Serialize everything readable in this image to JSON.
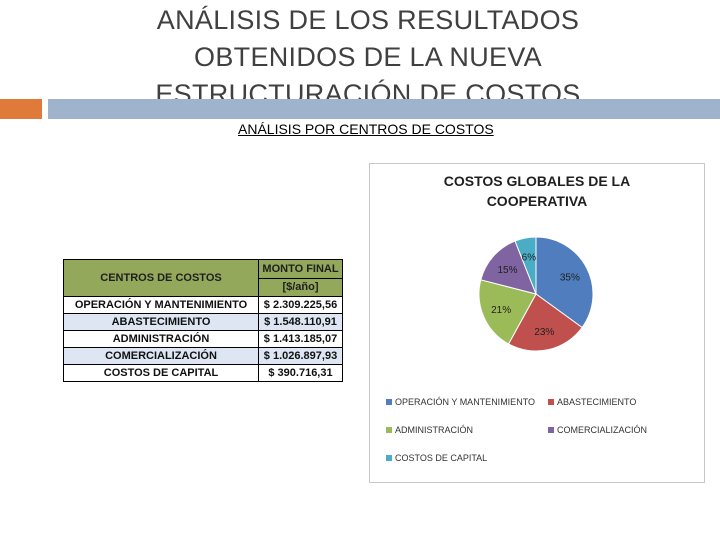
{
  "slide": {
    "title_lines": [
      "ANÁLISIS DE LOS RESULTADOS",
      "OBTENIDOS DE LA NUEVA",
      "ESTRUCTURACIÓN DE COSTOS"
    ],
    "subtitle": "ANÁLISIS POR CENTROS DE COSTOS"
  },
  "colors": {
    "accent_orange": "#e07a3a",
    "accent_blue": "#9fb4cc",
    "table_header": "#93a85a",
    "table_alt_row": "#dde6f2"
  },
  "table": {
    "headers": [
      "CENTROS DE COSTOS",
      "MONTO FINAL",
      "[$/año]"
    ],
    "rows": [
      [
        "OPERACIÓN Y MANTENIMIENTO",
        "$ 2.309.225,56"
      ],
      [
        "ABASTECIMIENTO",
        "$ 1.548.110,91"
      ],
      [
        "ADMINISTRACIÓN",
        "$ 1.413.185,07"
      ],
      [
        "COMERCIALIZACIÓN",
        "$ 1.026.897,93"
      ],
      [
        "COSTOS DE CAPITAL",
        "$ 390.716,31"
      ]
    ]
  },
  "chart_data": {
    "type": "pie",
    "title_lines": [
      "COSTOS GLOBALES DE LA",
      "COOPERATIVA"
    ],
    "categories": [
      "OPERACIÓN Y MANTENIMIENTO",
      "ABASTECIMIENTO",
      "ADMINISTRACIÓN",
      "COMERCIALIZACIÓN",
      "COSTOS DE CAPITAL"
    ],
    "values": [
      35,
      23,
      21,
      15,
      6
    ],
    "labels": [
      "35%",
      "23%",
      "21%",
      "15%",
      "6%"
    ],
    "colors": [
      "#4f7dbd",
      "#c0504d",
      "#9bbb59",
      "#8064a2",
      "#4bacc6"
    ],
    "legend_position": "bottom"
  }
}
